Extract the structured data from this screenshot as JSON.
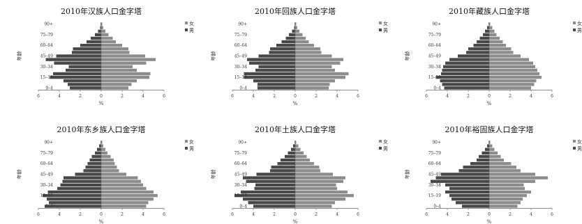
{
  "colors": {
    "female": "#8c8c8c",
    "male": "#484848",
    "axis": "#666666"
  },
  "chart_data": [
    {
      "type": "bar",
      "orientation": "horizontal",
      "subtype": "population-pyramid",
      "title": "2010年汉族人口金字塔",
      "xlabel": "%",
      "ylabel": "年龄",
      "xlim": [
        -6,
        6
      ],
      "xticks": [
        "6",
        "4",
        "2",
        "0",
        "2",
        "4",
        "6"
      ],
      "yticks": [
        "0–4",
        "15–19",
        "30–34",
        "45–49",
        "60–64",
        "75–79",
        "90+"
      ],
      "legend": [
        "女",
        "男"
      ],
      "legend_position": "right",
      "categories": [
        "0–4",
        "5–9",
        "10–14",
        "15–19",
        "20–24",
        "25–29",
        "30–34",
        "35–39",
        "40–44",
        "45–49",
        "50–54",
        "55–59",
        "60–64",
        "65–69",
        "70–74",
        "75–79",
        "80–84",
        "85–89",
        "90+"
      ],
      "series": [
        {
          "name": "女",
          "values": [
            2.6,
            2.9,
            3.4,
            4.6,
            4.7,
            3.4,
            3.0,
            4.3,
            5.2,
            4.2,
            2.7,
            2.6,
            2.0,
            1.4,
            1.1,
            0.7,
            0.4,
            0.2,
            0.1
          ]
        },
        {
          "name": "男",
          "values": [
            3.0,
            3.2,
            3.6,
            4.9,
            4.6,
            3.4,
            3.1,
            4.5,
            5.3,
            4.3,
            2.8,
            2.7,
            2.0,
            1.4,
            1.0,
            0.6,
            0.3,
            0.1,
            0.05
          ]
        }
      ]
    },
    {
      "type": "bar",
      "orientation": "horizontal",
      "subtype": "population-pyramid",
      "title": "2010年回族人口金字塔",
      "xlabel": "%",
      "ylabel": "年龄",
      "xlim": [
        -6,
        6
      ],
      "xticks": [
        "6",
        "4",
        "2",
        "0",
        "2",
        "4",
        "6"
      ],
      "yticks": [
        "0–4",
        "15–19",
        "30–34",
        "45–49",
        "60–64",
        "75–79",
        "90+"
      ],
      "legend": [
        "女",
        "男"
      ],
      "legend_position": "right",
      "categories": [
        "0–4",
        "5–9",
        "10–14",
        "15–19",
        "20–24",
        "25–29",
        "30–34",
        "35–39",
        "40–44",
        "45–49",
        "50–54",
        "55–59",
        "60–64",
        "65–69",
        "70–74",
        "75–79",
        "80–84",
        "85–89",
        "90+"
      ],
      "series": [
        {
          "name": "女",
          "values": [
            3.2,
            3.3,
            3.8,
            4.8,
            5.1,
            3.8,
            3.5,
            4.3,
            4.6,
            3.5,
            2.5,
            2.4,
            1.8,
            1.3,
            1.0,
            0.7,
            0.4,
            0.2,
            0.1
          ]
        },
        {
          "name": "男",
          "values": [
            3.6,
            3.6,
            4.0,
            4.9,
            4.9,
            3.8,
            3.5,
            4.4,
            4.6,
            3.5,
            2.5,
            2.4,
            1.8,
            1.3,
            0.9,
            0.6,
            0.3,
            0.1,
            0.05
          ]
        }
      ]
    },
    {
      "type": "bar",
      "orientation": "horizontal",
      "subtype": "population-pyramid",
      "title": "2010年藏族人口金字塔",
      "xlabel": "%",
      "ylabel": "年龄",
      "xlim": [
        -6,
        6
      ],
      "xticks": [
        "6",
        "4",
        "2",
        "0",
        "2",
        "4",
        "6"
      ],
      "yticks": [
        "0–4",
        "15–19",
        "30–34",
        "45–49",
        "60–64",
        "75–79",
        "90+"
      ],
      "legend": [
        "女",
        "男"
      ],
      "legend_position": "right",
      "categories": [
        "0–4",
        "5–9",
        "10–14",
        "15–19",
        "20–24",
        "25–29",
        "30–34",
        "35–39",
        "40–44",
        "45–49",
        "50–54",
        "55–59",
        "60–64",
        "65–69",
        "70–74",
        "75–79",
        "80–84",
        "85–89",
        "90+"
      ],
      "series": [
        {
          "name": "女",
          "values": [
            4.0,
            4.3,
            4.5,
            5.0,
            4.8,
            4.6,
            4.4,
            4.2,
            3.8,
            3.0,
            2.3,
            2.1,
            1.6,
            1.3,
            1.0,
            0.7,
            0.5,
            0.3,
            0.1
          ]
        },
        {
          "name": "男",
          "values": [
            4.3,
            4.5,
            4.7,
            5.1,
            4.6,
            4.5,
            4.4,
            4.2,
            3.8,
            3.0,
            2.2,
            2.0,
            1.5,
            1.2,
            0.9,
            0.6,
            0.4,
            0.2,
            0.05
          ]
        }
      ]
    },
    {
      "type": "bar",
      "orientation": "horizontal",
      "subtype": "population-pyramid",
      "title": "2010年东乡族人口金字塔",
      "xlabel": "%",
      "ylabel": "年龄",
      "xlim": [
        -6,
        6
      ],
      "xticks": [
        "6",
        "4",
        "2",
        "0",
        "2",
        "4",
        "6"
      ],
      "yticks": [
        "0–4",
        "15–19",
        "30–34",
        "45–49",
        "60–64",
        "75–79",
        "90+"
      ],
      "legend": [
        "女",
        "男"
      ],
      "legend_position": "right",
      "categories": [
        "0–4",
        "5–9",
        "10–14",
        "15–19",
        "20–24",
        "25–29",
        "30–34",
        "35–39",
        "40–44",
        "45–49",
        "50–54",
        "55–59",
        "60–64",
        "65–69",
        "70–74",
        "75–79",
        "80–84",
        "85–89",
        "90+"
      ],
      "series": [
        {
          "name": "女",
          "values": [
            4.3,
            4.5,
            5.0,
            5.4,
            5.0,
            4.3,
            4.0,
            3.8,
            3.5,
            2.4,
            1.7,
            1.5,
            1.3,
            1.2,
            0.9,
            0.6,
            0.4,
            0.2,
            0.1
          ]
        },
        {
          "name": "男",
          "values": [
            5.4,
            5.0,
            5.2,
            5.6,
            5.1,
            4.2,
            3.9,
            3.7,
            3.6,
            2.5,
            1.7,
            1.5,
            1.3,
            1.1,
            0.9,
            0.6,
            0.4,
            0.2,
            0.05
          ]
        }
      ]
    },
    {
      "type": "bar",
      "orientation": "horizontal",
      "subtype": "population-pyramid",
      "title": "2010年土族人口金字塔",
      "xlabel": "%",
      "ylabel": "年龄",
      "xlim": [
        -6,
        6
      ],
      "xticks": [
        "6",
        "4",
        "2",
        "0",
        "2",
        "4",
        "6"
      ],
      "yticks": [
        "0–4",
        "15–19",
        "30–34",
        "45–49",
        "60–64",
        "75–79",
        "90+"
      ],
      "legend": [
        "女",
        "男"
      ],
      "legend_position": "right",
      "categories": [
        "0–4",
        "5–9",
        "10–14",
        "15–19",
        "20–24",
        "25–29",
        "30–34",
        "35–39",
        "40–44",
        "45–49",
        "50–54",
        "55–59",
        "60–64",
        "65–69",
        "70–74",
        "75–79",
        "80–84",
        "85–89",
        "90+"
      ],
      "series": [
        {
          "name": "女",
          "values": [
            3.5,
            3.8,
            4.8,
            5.6,
            5.0,
            4.0,
            3.9,
            4.6,
            4.8,
            3.6,
            2.4,
            2.3,
            1.8,
            1.4,
            1.1,
            0.8,
            0.5,
            0.3,
            0.1
          ]
        },
        {
          "name": "男",
          "values": [
            4.0,
            4.5,
            5.0,
            5.8,
            5.2,
            3.9,
            3.8,
            4.7,
            5.0,
            3.7,
            2.4,
            2.3,
            1.7,
            1.4,
            1.0,
            0.7,
            0.4,
            0.2,
            0.05
          ]
        }
      ]
    },
    {
      "type": "bar",
      "orientation": "horizontal",
      "subtype": "population-pyramid",
      "title": "2010年裕固族人口金字塔",
      "xlabel": "%",
      "ylabel": "年龄",
      "xlim": [
        -6,
        6
      ],
      "xticks": [
        "6",
        "4",
        "2",
        "0",
        "2",
        "4",
        "6"
      ],
      "yticks": [
        "0–4",
        "15–19",
        "30–34",
        "45–49",
        "60–64",
        "75–79",
        "90+"
      ],
      "legend": [
        "女",
        "男"
      ],
      "legend_position": "right",
      "categories": [
        "0–4",
        "5–9",
        "10–14",
        "15–19",
        "20–24",
        "25–29",
        "30–34",
        "35–39",
        "40–44",
        "45–49",
        "50–54",
        "55–59",
        "60–64",
        "65–69",
        "70–74",
        "75–79",
        "80–84",
        "85–89",
        "90+"
      ],
      "series": [
        {
          "name": "女",
          "values": [
            2.7,
            3.0,
            3.2,
            3.6,
            4.0,
            3.4,
            3.3,
            4.4,
            5.6,
            4.4,
            3.0,
            2.6,
            2.1,
            1.4,
            1.1,
            0.8,
            0.5,
            0.3,
            0.1
          ]
        },
        {
          "name": "男",
          "values": [
            2.6,
            3.2,
            3.6,
            3.8,
            4.2,
            3.8,
            4.2,
            5.6,
            5.1,
            4.6,
            2.9,
            2.5,
            1.8,
            1.2,
            1.0,
            0.7,
            0.4,
            0.2,
            0.05
          ]
        }
      ]
    }
  ]
}
